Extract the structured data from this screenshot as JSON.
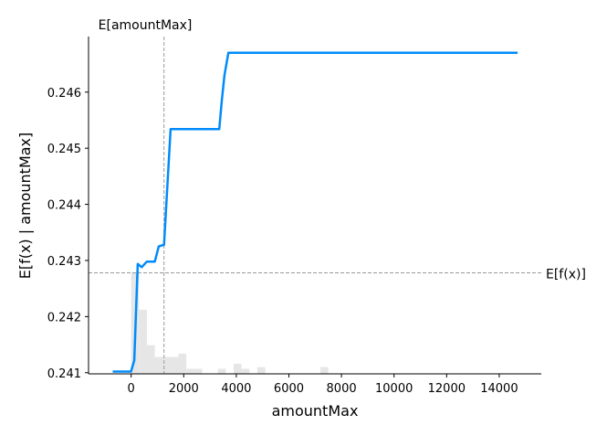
{
  "chart_data": {
    "type": "line",
    "xlabel": "amountMax",
    "ylabel": "E[f(x) | amountMax]",
    "xlim": [
      -1620,
      15600
    ],
    "ylim": [
      240.98,
      246.99
    ],
    "y_scale_divisor": 1000,
    "xticks": [
      0,
      2000,
      4000,
      6000,
      8000,
      10000,
      12000,
      14000
    ],
    "yticks": [
      241,
      242,
      243,
      244,
      245,
      246
    ],
    "ytick_labels": [
      "0.241",
      "0.242",
      "0.243",
      "0.244",
      "0.245",
      "0.246"
    ],
    "line_color": "#008bfb",
    "series": [
      {
        "x": [
          -700,
          -5,
          120,
          250,
          400,
          600,
          900,
          1050,
          1250,
          1500,
          3350,
          3450,
          3550,
          3700,
          14700
        ],
        "y": [
          241.02,
          241.02,
          241.22,
          242.94,
          242.88,
          242.98,
          242.98,
          243.25,
          243.28,
          245.34,
          245.34,
          245.85,
          246.3,
          246.7,
          246.7
        ]
      }
    ],
    "expected_x": {
      "label": "E[amountMax]",
      "value": 1250
    },
    "expected_y": {
      "label": "E[f(x)]",
      "value": 242.78
    },
    "histogram": {
      "color": "#e6e6e6",
      "bin_width": 300,
      "bins": [
        {
          "x": 0,
          "h": 0.3
        },
        {
          "x": 300,
          "h": 0.19
        },
        {
          "x": 600,
          "h": 0.085
        },
        {
          "x": 900,
          "h": 0.05
        },
        {
          "x": 1200,
          "h": 0.05
        },
        {
          "x": 1500,
          "h": 0.05
        },
        {
          "x": 1800,
          "h": 0.06
        },
        {
          "x": 2100,
          "h": 0.015
        },
        {
          "x": 2400,
          "h": 0.015
        },
        {
          "x": 3300,
          "h": 0.015
        },
        {
          "x": 3900,
          "h": 0.03
        },
        {
          "x": 4200,
          "h": 0.015
        },
        {
          "x": 4800,
          "h": 0.02
        },
        {
          "x": 7200,
          "h": 0.02
        }
      ]
    }
  }
}
